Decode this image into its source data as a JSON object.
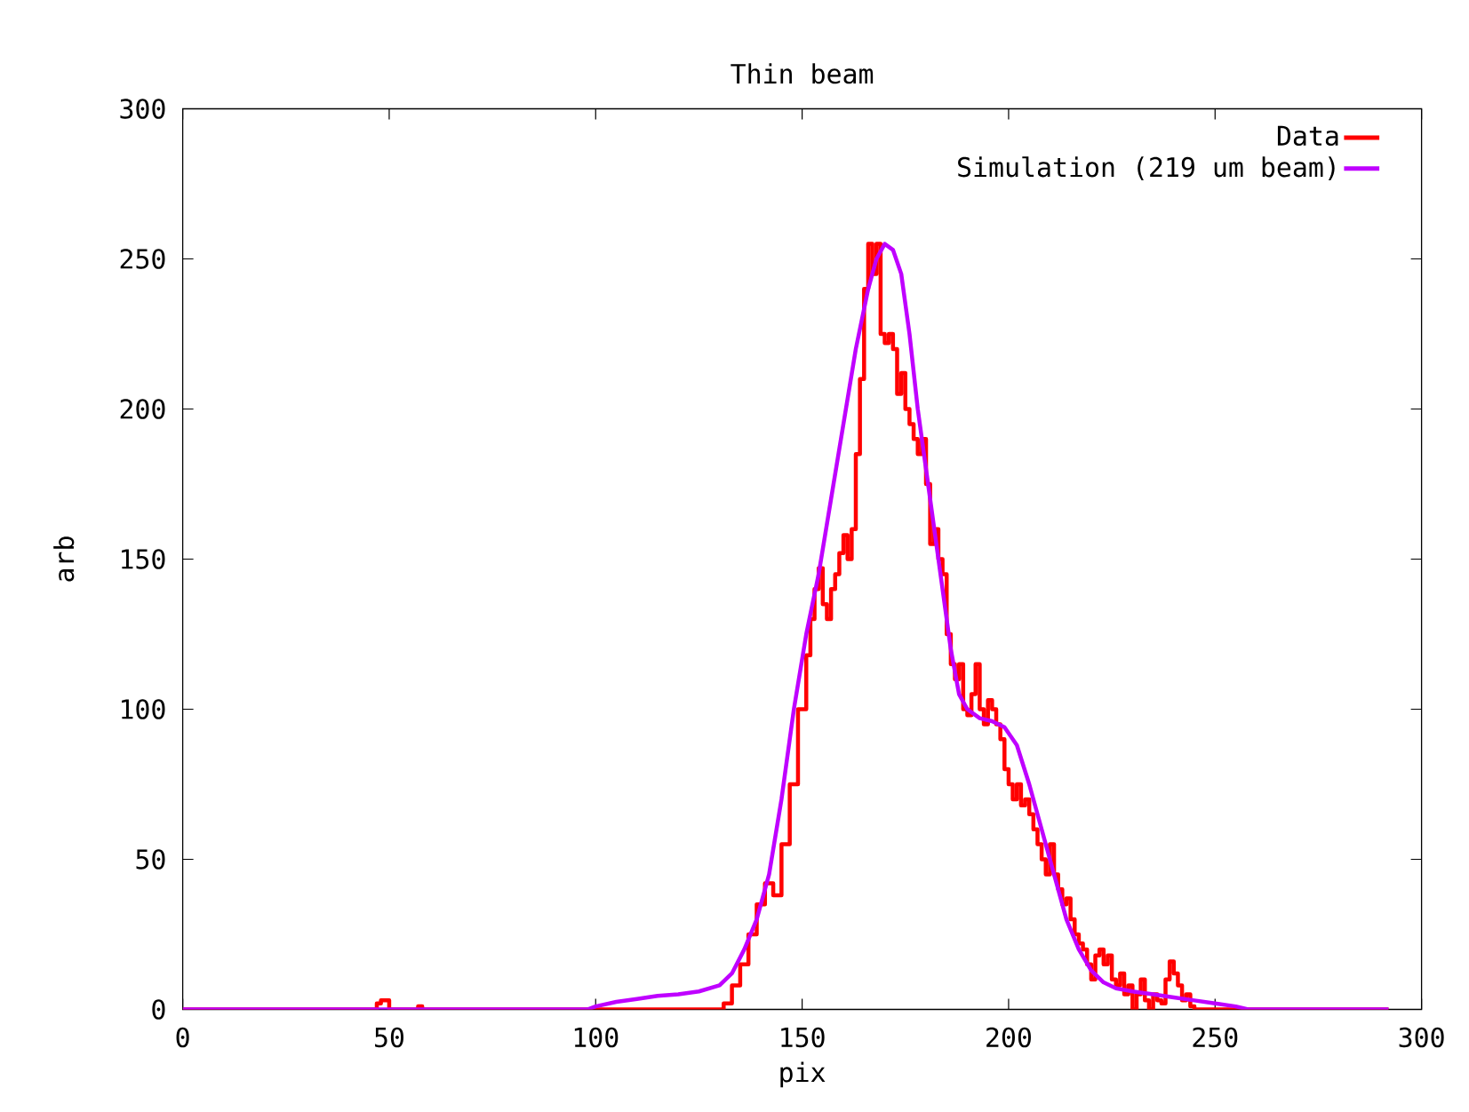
{
  "chart_data": {
    "type": "line",
    "title": "Thin beam",
    "xlabel": "pix",
    "ylabel": "arb",
    "xlim": [
      0,
      300
    ],
    "ylim": [
      0,
      300
    ],
    "xticks": [
      0,
      50,
      100,
      150,
      200,
      250,
      300
    ],
    "yticks": [
      0,
      50,
      100,
      150,
      200,
      250,
      300
    ],
    "grid": false,
    "legend": "top right",
    "series": [
      {
        "name": "Data",
        "type": "step",
        "color": "#ff0000",
        "x": [
          0,
          47,
          48,
          50,
          57,
          58,
          60,
          130,
          131,
          133,
          135,
          137,
          139,
          141,
          143,
          145,
          147,
          149,
          151,
          152,
          153,
          154,
          155,
          156,
          157,
          158,
          159,
          160,
          161,
          162,
          163,
          164,
          165,
          166,
          167,
          168,
          169,
          170,
          171,
          172,
          173,
          174,
          175,
          176,
          177,
          178,
          179,
          180,
          181,
          182,
          183,
          184,
          185,
          186,
          187,
          188,
          189,
          190,
          191,
          192,
          193,
          194,
          195,
          196,
          197,
          198,
          199,
          200,
          201,
          202,
          203,
          204,
          205,
          206,
          207,
          208,
          209,
          210,
          211,
          212,
          213,
          214,
          215,
          216,
          217,
          218,
          219,
          220,
          221,
          222,
          223,
          224,
          225,
          226,
          227,
          228,
          229,
          230,
          231,
          232,
          233,
          234,
          235,
          236,
          237,
          238,
          239,
          240,
          241,
          242,
          243,
          244,
          245,
          292
        ],
        "values": [
          0,
          2,
          3,
          0,
          1,
          0,
          0,
          0,
          2,
          8,
          15,
          25,
          35,
          42,
          38,
          55,
          75,
          100,
          118,
          130,
          140,
          147,
          135,
          130,
          140,
          145,
          152,
          158,
          150,
          160,
          185,
          210,
          240,
          255,
          245,
          255,
          225,
          222,
          225,
          220,
          205,
          212,
          200,
          195,
          190,
          185,
          190,
          175,
          155,
          160,
          150,
          145,
          125,
          115,
          110,
          115,
          100,
          98,
          105,
          115,
          100,
          95,
          103,
          100,
          95,
          90,
          80,
          75,
          70,
          75,
          68,
          70,
          65,
          60,
          55,
          50,
          45,
          55,
          45,
          40,
          35,
          37,
          30,
          25,
          22,
          20,
          15,
          10,
          18,
          20,
          15,
          18,
          10,
          8,
          12,
          5,
          8,
          0,
          5,
          10,
          3,
          0,
          5,
          3,
          2,
          10,
          16,
          12,
          8,
          3,
          5,
          1,
          0,
          0
        ]
      },
      {
        "name": "Simulation (219 um beam)",
        "type": "line",
        "color": "#bf00ff",
        "x": [
          0,
          98,
          100,
          105,
          110,
          115,
          120,
          125,
          130,
          133,
          136,
          139,
          142,
          145,
          148,
          151,
          154,
          157,
          160,
          163,
          166,
          168,
          170,
          172,
          174,
          176,
          178,
          180,
          182,
          184,
          186,
          188,
          190,
          193,
          196,
          199,
          202,
          205,
          208,
          211,
          214,
          217,
          220,
          223,
          226,
          230,
          235,
          240,
          245,
          250,
          255,
          258,
          292
        ],
        "values": [
          0,
          0,
          1,
          2.5,
          3.5,
          4.5,
          5,
          6,
          8,
          12,
          20,
          30,
          45,
          70,
          100,
          125,
          145,
          170,
          195,
          220,
          240,
          250,
          255,
          253,
          245,
          225,
          200,
          180,
          160,
          140,
          120,
          105,
          100,
          97,
          96,
          94,
          88,
          75,
          60,
          45,
          30,
          20,
          13,
          9,
          7,
          6,
          5,
          4,
          3,
          2,
          1,
          0,
          0
        ]
      }
    ]
  }
}
